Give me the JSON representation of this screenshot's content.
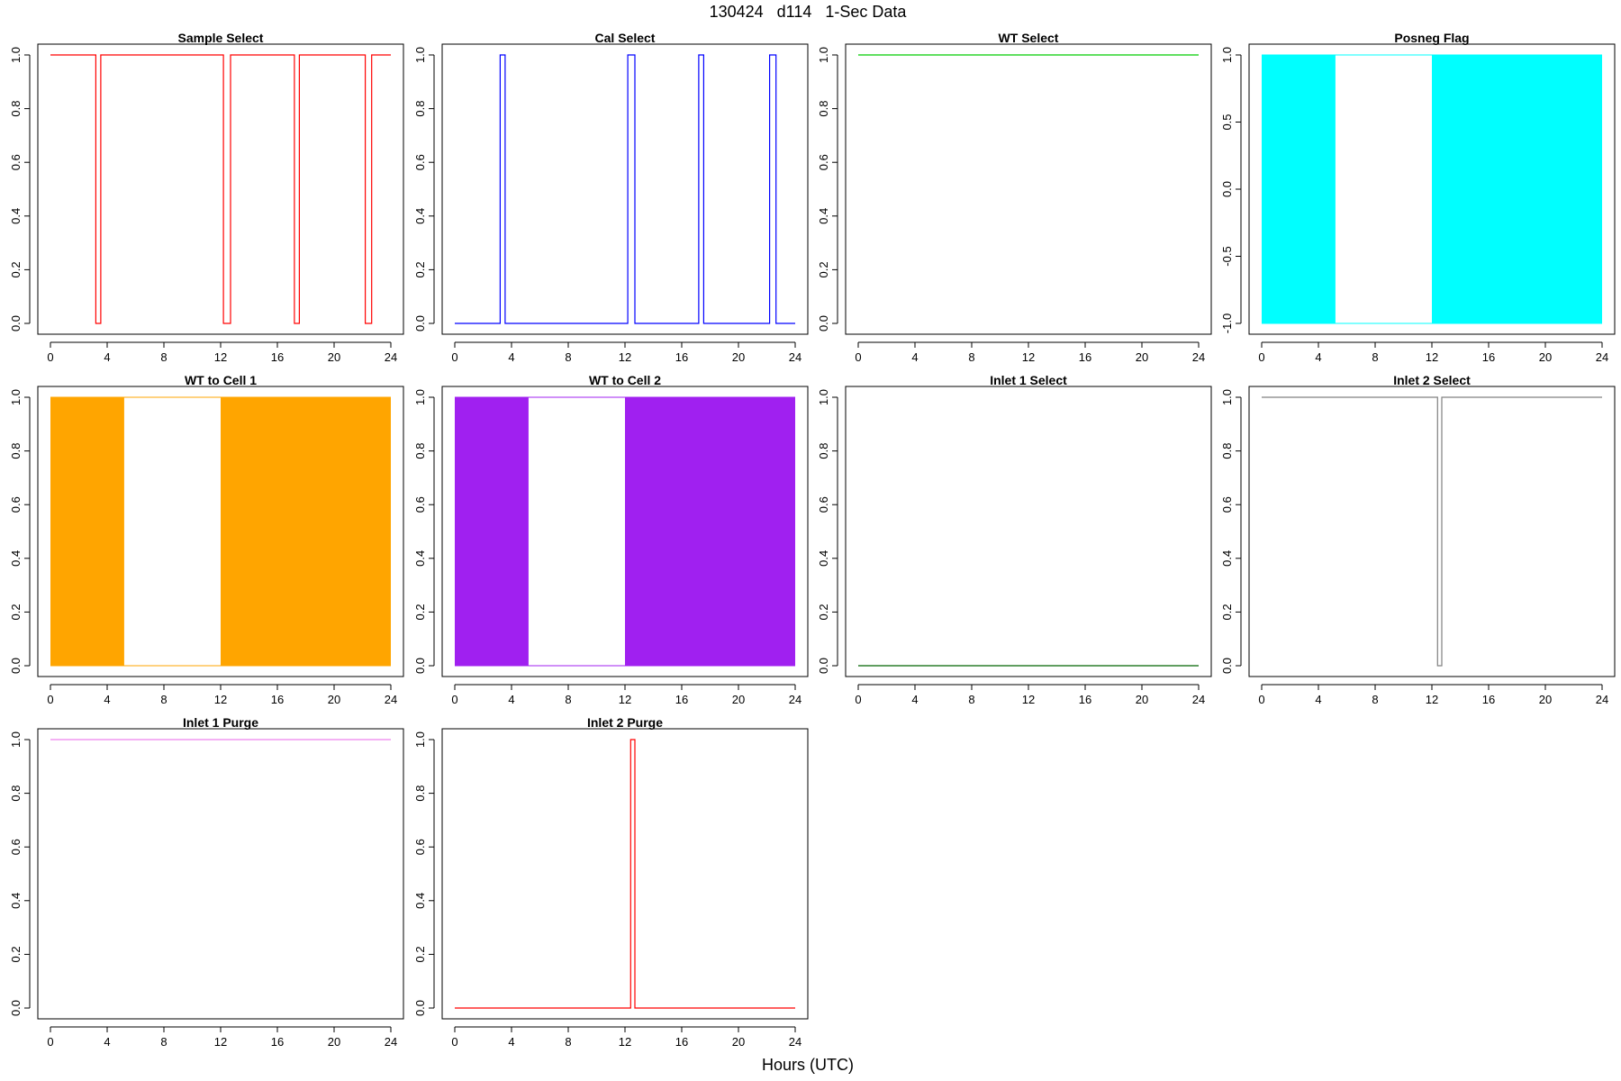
{
  "figure": {
    "title": "130424   d114   1-Sec Data",
    "xlabel": "Hours (UTC)"
  },
  "chart_data": [
    {
      "type": "line",
      "title": "Sample Select",
      "color": "#ff0000",
      "fill": false,
      "xlim": [
        0,
        24
      ],
      "ylim": [
        0,
        1
      ],
      "xticks": [
        0,
        4,
        8,
        12,
        16,
        20,
        24
      ],
      "yticks": [
        "0.0",
        "0.2",
        "0.4",
        "0.6",
        "0.8",
        "1.0"
      ],
      "x": [
        0,
        3.2,
        3.2,
        3.55,
        3.55,
        12.2,
        12.2,
        12.7,
        12.7,
        17.2,
        17.2,
        17.55,
        17.55,
        22.2,
        22.2,
        22.65,
        22.65,
        24
      ],
      "y": [
        1,
        1,
        0,
        0,
        1,
        1,
        0,
        0,
        1,
        1,
        0,
        0,
        1,
        1,
        0,
        0,
        1,
        1
      ]
    },
    {
      "type": "line",
      "title": "Cal Select",
      "color": "#0000ff",
      "fill": false,
      "xlim": [
        0,
        24
      ],
      "ylim": [
        0,
        1
      ],
      "xticks": [
        0,
        4,
        8,
        12,
        16,
        20,
        24
      ],
      "yticks": [
        "0.0",
        "0.2",
        "0.4",
        "0.6",
        "0.8",
        "1.0"
      ],
      "x": [
        0,
        3.2,
        3.2,
        3.55,
        3.55,
        12.2,
        12.2,
        12.7,
        12.7,
        17.2,
        17.2,
        17.55,
        17.55,
        22.2,
        22.2,
        22.65,
        22.65,
        24
      ],
      "y": [
        0,
        0,
        1,
        1,
        0,
        0,
        1,
        1,
        0,
        0,
        1,
        1,
        0,
        0,
        1,
        1,
        0,
        0
      ]
    },
    {
      "type": "line",
      "title": "WT Select",
      "color": "#00cc00",
      "fill": false,
      "xlim": [
        0,
        24
      ],
      "ylim": [
        0,
        1
      ],
      "xticks": [
        0,
        4,
        8,
        12,
        16,
        20,
        24
      ],
      "yticks": [
        "0.0",
        "0.2",
        "0.4",
        "0.6",
        "0.8",
        "1.0"
      ],
      "x": [
        0,
        24
      ],
      "y": [
        1,
        1
      ]
    },
    {
      "type": "area",
      "title": "Posneg Flag",
      "color": "#00ffff",
      "fill": true,
      "xlim": [
        0,
        24
      ],
      "ylim": [
        -1,
        1
      ],
      "xticks": [
        0,
        4,
        8,
        12,
        16,
        20,
        24
      ],
      "yticks": [
        "-1.0",
        "-0.5",
        "0.0",
        "0.5",
        "1.0"
      ],
      "base": -1,
      "top": 1,
      "blocks": [
        [
          0,
          5.2
        ],
        [
          12,
          24
        ]
      ]
    },
    {
      "type": "area",
      "title": "WT to Cell 1",
      "color": "#ffa500",
      "fill": true,
      "xlim": [
        0,
        24
      ],
      "ylim": [
        0,
        1
      ],
      "xticks": [
        0,
        4,
        8,
        12,
        16,
        20,
        24
      ],
      "yticks": [
        "0.0",
        "0.2",
        "0.4",
        "0.6",
        "0.8",
        "1.0"
      ],
      "base": 0,
      "top": 1,
      "blocks": [
        [
          0,
          5.2
        ],
        [
          12,
          24
        ]
      ]
    },
    {
      "type": "area",
      "title": "WT to Cell 2",
      "color": "#a020f0",
      "fill": true,
      "xlim": [
        0,
        24
      ],
      "ylim": [
        0,
        1
      ],
      "xticks": [
        0,
        4,
        8,
        12,
        16,
        20,
        24
      ],
      "yticks": [
        "0.0",
        "0.2",
        "0.4",
        "0.6",
        "0.8",
        "1.0"
      ],
      "base": 0,
      "top": 1,
      "blocks": [
        [
          0,
          5.2
        ],
        [
          12,
          24
        ]
      ]
    },
    {
      "type": "line",
      "title": "Inlet 1 Select",
      "color": "#006400",
      "fill": false,
      "xlim": [
        0,
        24
      ],
      "ylim": [
        0,
        1
      ],
      "xticks": [
        0,
        4,
        8,
        12,
        16,
        20,
        24
      ],
      "yticks": [
        "0.0",
        "0.2",
        "0.4",
        "0.6",
        "0.8",
        "1.0"
      ],
      "x": [
        0,
        24
      ],
      "y": [
        0,
        0
      ]
    },
    {
      "type": "line",
      "title": "Inlet 2 Select",
      "color": "#808080",
      "fill": false,
      "xlim": [
        0,
        24
      ],
      "ylim": [
        0,
        1
      ],
      "xticks": [
        0,
        4,
        8,
        12,
        16,
        20,
        24
      ],
      "yticks": [
        "0.0",
        "0.2",
        "0.4",
        "0.6",
        "0.8",
        "1.0"
      ],
      "x": [
        0,
        12.4,
        12.4,
        12.7,
        12.7,
        24
      ],
      "y": [
        1,
        1,
        0,
        0,
        1,
        1
      ]
    },
    {
      "type": "line",
      "title": "Inlet 1 Purge",
      "color": "#ee82ee",
      "fill": false,
      "xlim": [
        0,
        24
      ],
      "ylim": [
        0,
        1
      ],
      "xticks": [
        0,
        4,
        8,
        12,
        16,
        20,
        24
      ],
      "yticks": [
        "0.0",
        "0.2",
        "0.4",
        "0.6",
        "0.8",
        "1.0"
      ],
      "x": [
        0,
        24
      ],
      "y": [
        1,
        1
      ]
    },
    {
      "type": "line",
      "title": "Inlet 2 Purge",
      "color": "#ff0000",
      "fill": false,
      "xlim": [
        0,
        24
      ],
      "ylim": [
        0,
        1
      ],
      "xticks": [
        0,
        4,
        8,
        12,
        16,
        20,
        24
      ],
      "yticks": [
        "0.0",
        "0.2",
        "0.4",
        "0.6",
        "0.8",
        "1.0"
      ],
      "x": [
        0,
        12.4,
        12.4,
        12.7,
        12.7,
        24
      ],
      "y": [
        0,
        0,
        1,
        1,
        0,
        0
      ]
    }
  ]
}
